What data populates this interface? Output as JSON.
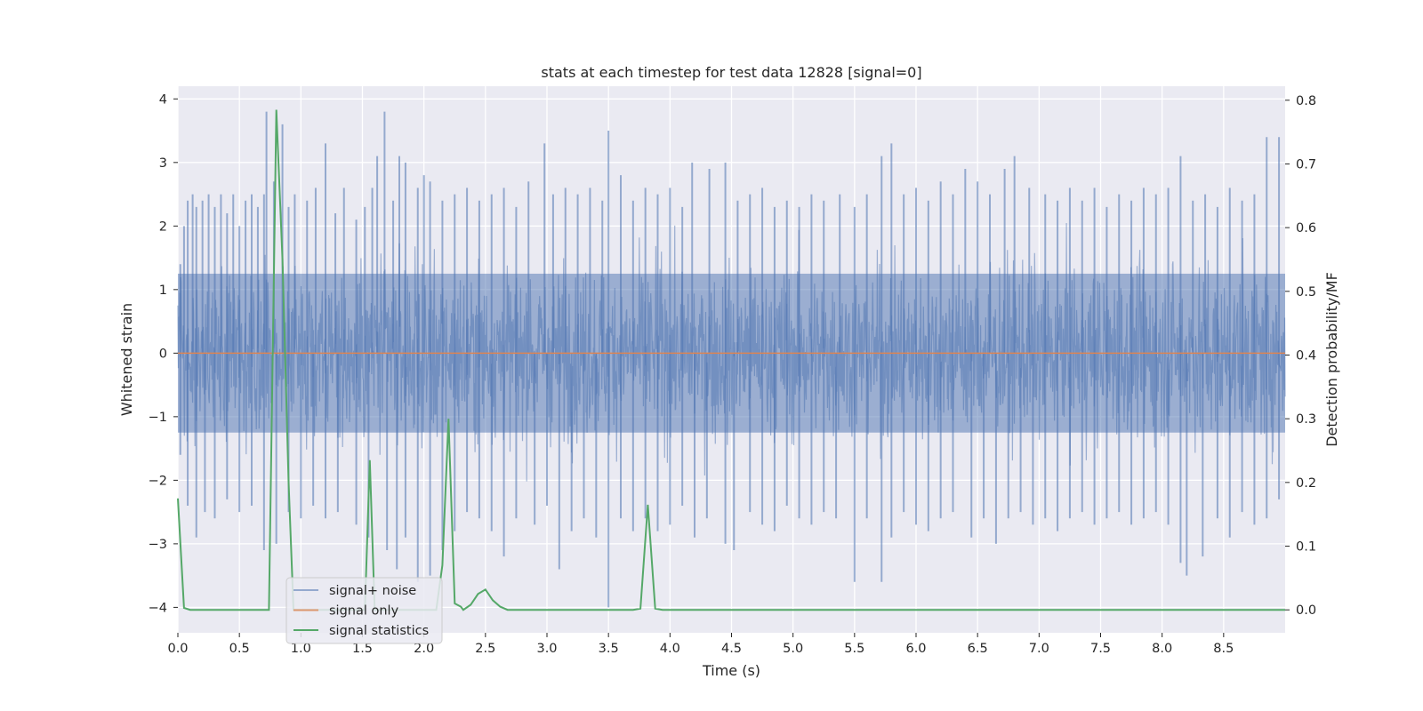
{
  "chart_data": {
    "type": "line",
    "title": "stats at each timestep for test data 12828 [signal=0]",
    "xlabel": "Time (s)",
    "ylabel": "Whitened strain",
    "y2label": "Detection probability/MF",
    "xlim": [
      0.0,
      9.0
    ],
    "ylim": [
      -4.4,
      4.2
    ],
    "y2lim": [
      -0.036,
      0.822
    ],
    "x_ticks": [
      "0.0",
      "0.5",
      "1.0",
      "1.5",
      "2.0",
      "2.5",
      "3.0",
      "3.5",
      "4.0",
      "4.5",
      "5.0",
      "5.5",
      "6.0",
      "6.5",
      "7.0",
      "7.5",
      "8.0",
      "8.5"
    ],
    "y_ticks": [
      "4",
      "3",
      "2",
      "1",
      "0",
      "−1",
      "−2",
      "−3",
      "−4"
    ],
    "y2_ticks": [
      "0.8",
      "0.7",
      "0.6",
      "0.5",
      "0.4",
      "0.3",
      "0.2",
      "0.1",
      "0.0"
    ],
    "grid": true,
    "legend_position": "lower-left",
    "colors": {
      "plot_bg": "#eaeaf2",
      "grid": "#ffffff",
      "noise": "#4c72b0",
      "signal": "#dd8452",
      "stats": "#55a868"
    },
    "series": [
      {
        "name": "signal+ noise",
        "axis": "left",
        "note_values": "dense noise trace between roughly -3.5 and 3.8",
        "spikes_up": [
          [
            0.02,
            1.4
          ],
          [
            0.05,
            2.0
          ],
          [
            0.08,
            2.4
          ],
          [
            0.12,
            2.5
          ],
          [
            0.15,
            2.3
          ],
          [
            0.2,
            2.4
          ],
          [
            0.25,
            2.5
          ],
          [
            0.3,
            2.3
          ],
          [
            0.35,
            2.5
          ],
          [
            0.4,
            2.2
          ],
          [
            0.45,
            2.5
          ],
          [
            0.5,
            2.0
          ],
          [
            0.55,
            2.4
          ],
          [
            0.6,
            2.5
          ],
          [
            0.65,
            2.3
          ],
          [
            0.7,
            2.5
          ],
          [
            0.72,
            3.8
          ],
          [
            0.78,
            2.7
          ],
          [
            0.85,
            3.6
          ],
          [
            0.9,
            2.3
          ],
          [
            0.95,
            2.5
          ],
          [
            1.05,
            2.4
          ],
          [
            1.12,
            2.6
          ],
          [
            1.2,
            3.3
          ],
          [
            1.28,
            2.2
          ],
          [
            1.35,
            2.6
          ],
          [
            1.45,
            2.1
          ],
          [
            1.52,
            2.3
          ],
          [
            1.58,
            2.6
          ],
          [
            1.62,
            3.1
          ],
          [
            1.68,
            3.8
          ],
          [
            1.75,
            2.4
          ],
          [
            1.8,
            3.1
          ],
          [
            1.85,
            3.0
          ],
          [
            1.95,
            2.6
          ],
          [
            2.0,
            2.8
          ],
          [
            2.05,
            2.7
          ],
          [
            2.15,
            2.4
          ],
          [
            2.25,
            2.5
          ],
          [
            2.35,
            2.6
          ],
          [
            2.45,
            2.4
          ],
          [
            2.55,
            2.5
          ],
          [
            2.65,
            2.6
          ],
          [
            2.75,
            2.3
          ],
          [
            2.85,
            2.7
          ],
          [
            2.98,
            3.3
          ],
          [
            3.05,
            2.5
          ],
          [
            3.15,
            2.6
          ],
          [
            3.25,
            2.5
          ],
          [
            3.35,
            2.6
          ],
          [
            3.45,
            2.4
          ],
          [
            3.5,
            3.5
          ],
          [
            3.6,
            2.8
          ],
          [
            3.7,
            2.4
          ],
          [
            3.8,
            2.6
          ],
          [
            3.9,
            2.5
          ],
          [
            4.0,
            2.6
          ],
          [
            4.1,
            2.3
          ],
          [
            4.18,
            3.0
          ],
          [
            4.32,
            2.9
          ],
          [
            4.45,
            3.0
          ],
          [
            4.55,
            2.4
          ],
          [
            4.65,
            2.5
          ],
          [
            4.75,
            2.6
          ],
          [
            4.85,
            2.3
          ],
          [
            4.95,
            2.4
          ],
          [
            5.05,
            2.3
          ],
          [
            5.15,
            2.5
          ],
          [
            5.25,
            2.4
          ],
          [
            5.38,
            2.5
          ],
          [
            5.5,
            2.3
          ],
          [
            5.6,
            2.5
          ],
          [
            5.72,
            3.1
          ],
          [
            5.8,
            3.3
          ],
          [
            5.9,
            2.5
          ],
          [
            6.0,
            2.6
          ],
          [
            6.1,
            2.4
          ],
          [
            6.2,
            2.7
          ],
          [
            6.3,
            2.5
          ],
          [
            6.4,
            2.9
          ],
          [
            6.5,
            2.7
          ],
          [
            6.6,
            2.5
          ],
          [
            6.72,
            2.9
          ],
          [
            6.8,
            3.1
          ],
          [
            6.92,
            2.6
          ],
          [
            7.05,
            2.5
          ],
          [
            7.15,
            2.4
          ],
          [
            7.25,
            2.6
          ],
          [
            7.35,
            2.4
          ],
          [
            7.45,
            2.6
          ],
          [
            7.55,
            2.3
          ],
          [
            7.65,
            2.5
          ],
          [
            7.75,
            2.4
          ],
          [
            7.85,
            2.6
          ],
          [
            7.95,
            2.5
          ],
          [
            8.05,
            2.6
          ],
          [
            8.15,
            3.1
          ],
          [
            8.25,
            2.4
          ],
          [
            8.35,
            2.5
          ],
          [
            8.45,
            2.3
          ],
          [
            8.55,
            2.6
          ],
          [
            8.65,
            2.4
          ],
          [
            8.75,
            2.5
          ],
          [
            8.85,
            3.4
          ],
          [
            8.95,
            3.4
          ]
        ],
        "spikes_down": [
          [
            0.02,
            -1.6
          ],
          [
            0.08,
            -2.4
          ],
          [
            0.15,
            -2.9
          ],
          [
            0.22,
            -2.5
          ],
          [
            0.3,
            -2.6
          ],
          [
            0.4,
            -2.3
          ],
          [
            0.5,
            -2.5
          ],
          [
            0.6,
            -2.4
          ],
          [
            0.7,
            -3.1
          ],
          [
            0.8,
            -3.0
          ],
          [
            0.9,
            -2.5
          ],
          [
            1.0,
            -2.6
          ],
          [
            1.1,
            -2.4
          ],
          [
            1.2,
            -2.6
          ],
          [
            1.3,
            -2.5
          ],
          [
            1.45,
            -2.7
          ],
          [
            1.55,
            -2.9
          ],
          [
            1.7,
            -3.1
          ],
          [
            1.78,
            -3.4
          ],
          [
            1.85,
            -2.9
          ],
          [
            1.95,
            -3.6
          ],
          [
            2.05,
            -3.5
          ],
          [
            2.15,
            -3.1
          ],
          [
            2.25,
            -2.8
          ],
          [
            2.35,
            -2.5
          ],
          [
            2.45,
            -2.6
          ],
          [
            2.55,
            -2.8
          ],
          [
            2.65,
            -3.2
          ],
          [
            2.75,
            -2.6
          ],
          [
            2.9,
            -2.7
          ],
          [
            3.0,
            -2.4
          ],
          [
            3.1,
            -3.4
          ],
          [
            3.2,
            -2.8
          ],
          [
            3.3,
            -2.6
          ],
          [
            3.4,
            -2.9
          ],
          [
            3.5,
            -4.0
          ],
          [
            3.6,
            -2.6
          ],
          [
            3.7,
            -2.8
          ],
          [
            3.8,
            -2.6
          ],
          [
            3.9,
            -2.8
          ],
          [
            4.0,
            -2.7
          ],
          [
            4.1,
            -2.4
          ],
          [
            4.2,
            -2.9
          ],
          [
            4.3,
            -2.6
          ],
          [
            4.45,
            -3.0
          ],
          [
            4.52,
            -3.1
          ],
          [
            4.65,
            -2.5
          ],
          [
            4.75,
            -2.7
          ],
          [
            4.85,
            -2.8
          ],
          [
            4.95,
            -2.4
          ],
          [
            5.05,
            -2.6
          ],
          [
            5.15,
            -2.7
          ],
          [
            5.25,
            -2.5
          ],
          [
            5.35,
            -2.6
          ],
          [
            5.5,
            -3.6
          ],
          [
            5.6,
            -2.6
          ],
          [
            5.72,
            -3.6
          ],
          [
            5.8,
            -2.9
          ],
          [
            5.9,
            -2.5
          ],
          [
            6.0,
            -2.7
          ],
          [
            6.1,
            -2.8
          ],
          [
            6.2,
            -2.6
          ],
          [
            6.3,
            -2.5
          ],
          [
            6.45,
            -2.9
          ],
          [
            6.55,
            -2.6
          ],
          [
            6.65,
            -3.0
          ],
          [
            6.75,
            -2.6
          ],
          [
            6.85,
            -2.5
          ],
          [
            6.95,
            -2.7
          ],
          [
            7.05,
            -2.6
          ],
          [
            7.15,
            -2.8
          ],
          [
            7.25,
            -2.6
          ],
          [
            7.35,
            -2.5
          ],
          [
            7.45,
            -2.7
          ],
          [
            7.55,
            -2.6
          ],
          [
            7.65,
            -2.5
          ],
          [
            7.75,
            -2.7
          ],
          [
            7.85,
            -2.6
          ],
          [
            7.95,
            -2.5
          ],
          [
            8.05,
            -2.7
          ],
          [
            8.15,
            -3.3
          ],
          [
            8.2,
            -3.5
          ],
          [
            8.33,
            -3.2
          ],
          [
            8.45,
            -2.6
          ],
          [
            8.55,
            -2.9
          ],
          [
            8.65,
            -2.5
          ],
          [
            8.75,
            -2.7
          ],
          [
            8.85,
            -2.6
          ],
          [
            8.95,
            -2.3
          ]
        ]
      },
      {
        "name": "signal only",
        "axis": "left",
        "x": [
          0.0,
          9.0
        ],
        "y": [
          0.0,
          0.0
        ]
      },
      {
        "name": "signal statistics",
        "axis": "right",
        "x": [
          0.0,
          0.05,
          0.1,
          0.15,
          0.2,
          0.25,
          0.3,
          0.35,
          0.4,
          0.45,
          0.5,
          0.55,
          0.6,
          0.65,
          0.7,
          0.74,
          0.8,
          0.85,
          0.9,
          0.94,
          1.0,
          1.05,
          1.1,
          1.15,
          1.2,
          1.25,
          1.3,
          1.35,
          1.4,
          1.45,
          1.5,
          1.52,
          1.56,
          1.6,
          1.65,
          1.7,
          1.75,
          1.8,
          1.85,
          1.9,
          1.95,
          2.0,
          2.05,
          2.1,
          2.15,
          2.2,
          2.25,
          2.3,
          2.32,
          2.38,
          2.44,
          2.5,
          2.56,
          2.62,
          2.68,
          2.74,
          2.8,
          2.9,
          3.0,
          3.1,
          3.2,
          3.3,
          3.4,
          3.5,
          3.6,
          3.7,
          3.76,
          3.82,
          3.88,
          3.94,
          4.0,
          4.5,
          5.0,
          5.5,
          6.0,
          6.5,
          7.0,
          7.5,
          8.0,
          8.5,
          9.0
        ],
        "y": [
          0.175,
          0.003,
          0.0,
          0.0,
          0.0,
          0.0,
          0.0,
          0.0,
          0.0,
          0.0,
          0.0,
          0.0,
          0.0,
          0.0,
          0.0,
          0.0,
          0.785,
          0.55,
          0.2,
          0.0,
          0.0,
          0.0,
          0.0,
          0.0,
          0.0,
          0.0,
          0.0,
          0.0,
          0.0,
          0.0,
          0.0,
          0.0,
          0.235,
          0.0,
          0.0,
          0.0,
          0.0,
          0.0,
          0.0,
          0.0,
          0.0,
          0.0,
          0.0,
          0.0,
          0.07,
          0.3,
          0.01,
          0.005,
          0.0,
          0.008,
          0.025,
          0.032,
          0.015,
          0.005,
          0.0,
          0.0,
          0.0,
          0.0,
          0.0,
          0.0,
          0.0,
          0.0,
          0.0,
          0.0,
          0.0,
          0.0,
          0.002,
          0.165,
          0.002,
          0.0,
          0.0,
          0.0,
          0.0,
          0.0,
          0.0,
          0.0,
          0.0,
          0.0,
          0.0,
          0.0,
          0.0
        ]
      }
    ]
  }
}
